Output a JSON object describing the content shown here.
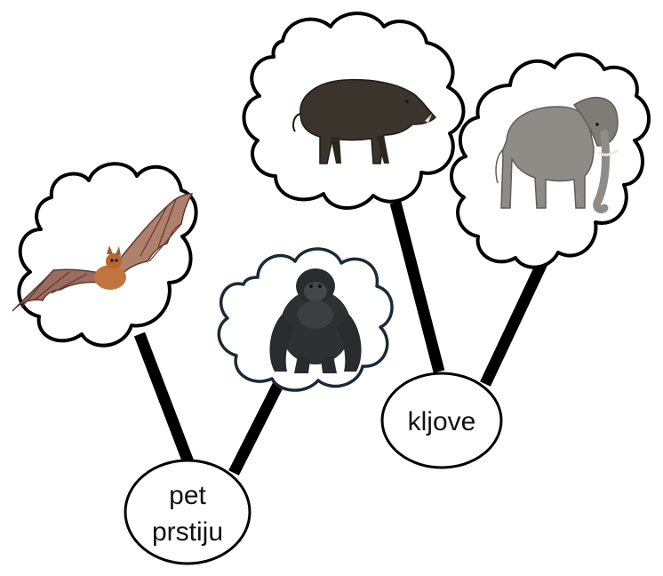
{
  "diagram": {
    "nodes": [
      {
        "id": "five-fingers",
        "lines": [
          "pet",
          "prstiju"
        ]
      },
      {
        "id": "tusks",
        "lines": [
          "kljove"
        ]
      }
    ],
    "images": [
      {
        "id": "bat",
        "depicts": "bat",
        "group": "five-fingers"
      },
      {
        "id": "gorilla",
        "depicts": "gorilla",
        "group": "five-fingers"
      },
      {
        "id": "boar",
        "depicts": "wild-boar",
        "group": "tusks"
      },
      {
        "id": "elephant",
        "depicts": "elephant",
        "group": "tusks"
      }
    ],
    "colors": {
      "line": "#000000",
      "cloud_fill": "#ffffff",
      "gorilla_cloud_stroke": "#1b2b35",
      "text": "#111111"
    }
  }
}
